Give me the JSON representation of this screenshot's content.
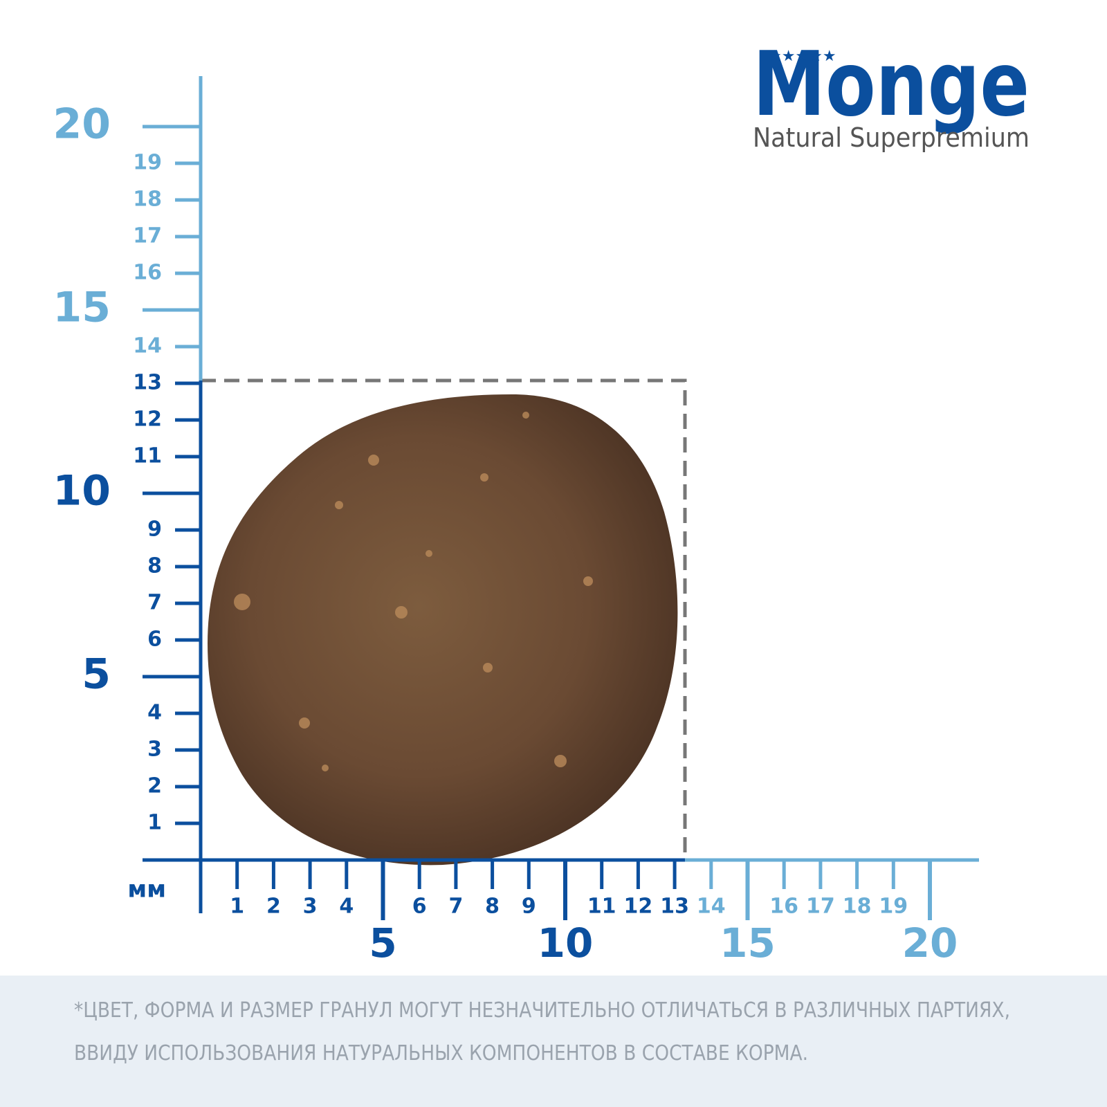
{
  "logo": {
    "brand": "Monge",
    "tagline": "Natural Superpremium"
  },
  "ruler": {
    "unit": "мм",
    "y_small": [
      1,
      2,
      3,
      4,
      6,
      7,
      8,
      9,
      11,
      12,
      13,
      14,
      16,
      17,
      18,
      19
    ],
    "y_large": [
      5,
      10,
      15,
      20
    ],
    "x_small": [
      1,
      2,
      3,
      4,
      6,
      7,
      8,
      9,
      11,
      12,
      13,
      14,
      16,
      17,
      18,
      19
    ],
    "x_large": [
      5,
      10,
      15,
      20
    ]
  },
  "footer": {
    "lines": [
      "*ЦВЕТ, ФОРМА И РАЗМЕР ГРАНУЛ МОГУТ НЕЗНАЧИТЕЛЬНО ОТЛИЧАТЬСЯ В РАЗЛИЧНЫХ ПАРТИЯХ,",
      "ВВИДУ ИСПОЛЬЗОВАНИЯ НАТУРАЛЬНЫХ КОМПОНЕНТОВ В СОСТАВЕ КОРМА."
    ]
  }
}
